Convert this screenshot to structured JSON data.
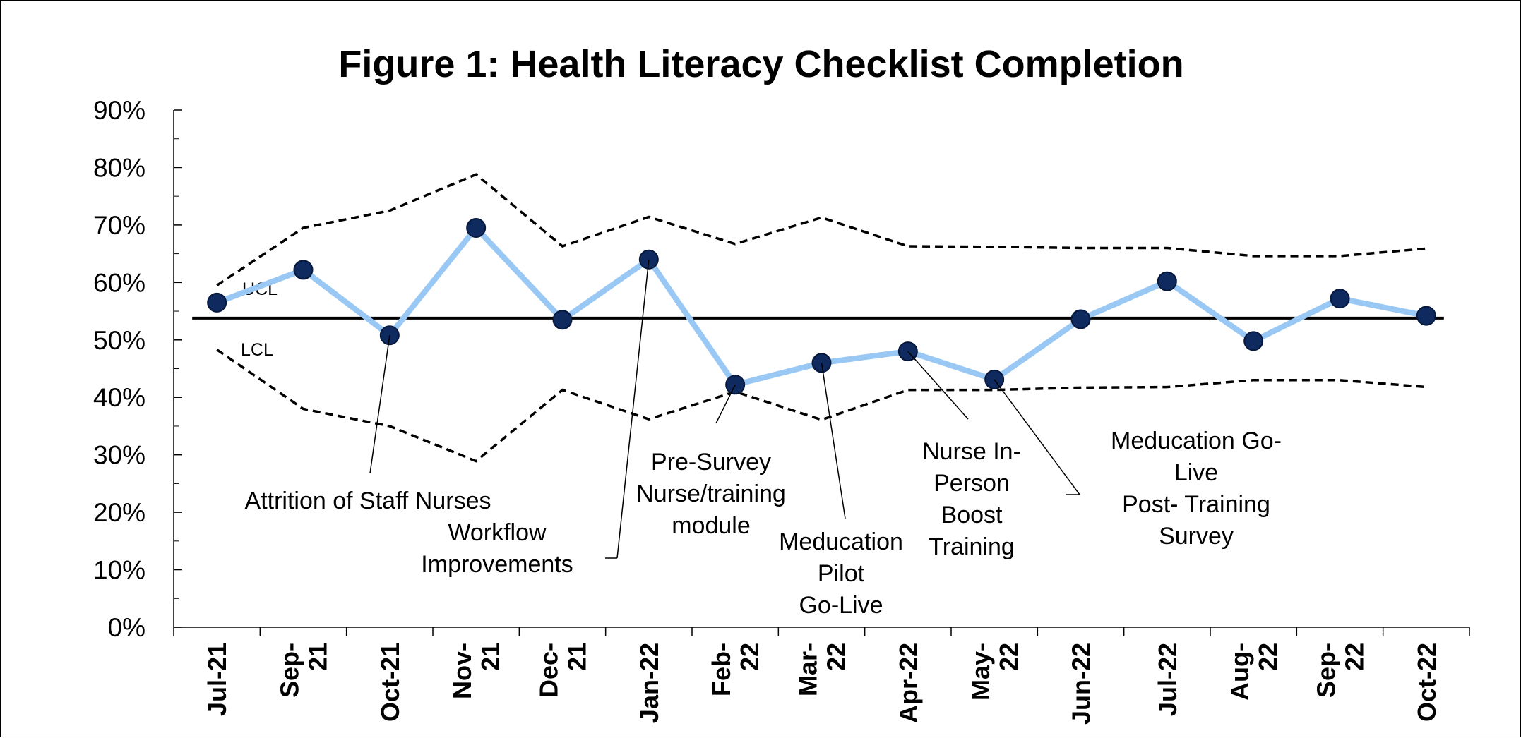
{
  "chart_data": {
    "type": "line",
    "title": "Figure 1: Health Literacy Checklist Completion",
    "xlabel": "",
    "ylabel": "",
    "ylim": [
      0,
      90
    ],
    "yticks": [
      "0%",
      "10%",
      "20%",
      "30%",
      "40%",
      "50%",
      "60%",
      "70%",
      "80%",
      "90%"
    ],
    "categories": [
      [
        "Jul-21"
      ],
      [
        "Sep-",
        "21"
      ],
      [
        "Oct-21"
      ],
      [
        "Nov-",
        "21"
      ],
      [
        "Dec-",
        "21"
      ],
      [
        "Jan-22"
      ],
      [
        "Feb-",
        "22"
      ],
      [
        "Mar-",
        "22"
      ],
      [
        "Apr-22"
      ],
      [
        "May-",
        "22"
      ],
      [
        "Jun-22"
      ],
      [
        "Jul-22"
      ],
      [
        "Aug-",
        "22"
      ],
      [
        "Sep-",
        "22"
      ],
      [
        "Oct-22"
      ]
    ],
    "series": [
      {
        "values": [
          56.5,
          62.2,
          50.8,
          69.5,
          53.5,
          64.0,
          42.2,
          46.0,
          48.0,
          43.1,
          53.6,
          60.2,
          49.8,
          57.2,
          54.2
        ]
      }
    ],
    "ucl": [
      59.5,
      69.5,
      72.5,
      78.8,
      66.3,
      71.4,
      66.7,
      71.3,
      66.3,
      66.2,
      66.0,
      66.0,
      64.6,
      64.6,
      65.9
    ],
    "lcl": [
      48.3,
      38.0,
      35.0,
      28.9,
      41.3,
      36.2,
      41.0,
      36.1,
      41.3,
      41.3,
      41.7,
      41.8,
      43.0,
      43.0,
      41.8
    ],
    "center_line": 53.8,
    "limit_labels": {
      "ucl": "UCL",
      "lcl": "LCL"
    },
    "annotations": [
      {
        "lines": [
          "Attrition of Staff Nurses"
        ],
        "point": 2
      },
      {
        "lines": [
          "Workflow",
          "Improvements"
        ],
        "point": 5
      },
      {
        "lines": [
          "Pre-Survey",
          "Nurse/training",
          "module"
        ],
        "point": 6
      },
      {
        "lines": [
          "Meducation",
          "Pilot",
          "Go-Live"
        ],
        "point": 7
      },
      {
        "lines": [
          "Nurse In-",
          "Person",
          "Boost",
          "Training"
        ],
        "point": 8
      },
      {
        "lines": [
          "Meducation Go-",
          "Live",
          "Post- Training",
          "Survey"
        ],
        "point": 9
      }
    ],
    "colors": {
      "series_line": "#99c8f4",
      "marker_fill": "#0f2a5e",
      "marker_stroke": "#07183d",
      "limits": "#000000",
      "center": "#000000"
    },
    "grid": false,
    "legend": "none"
  }
}
